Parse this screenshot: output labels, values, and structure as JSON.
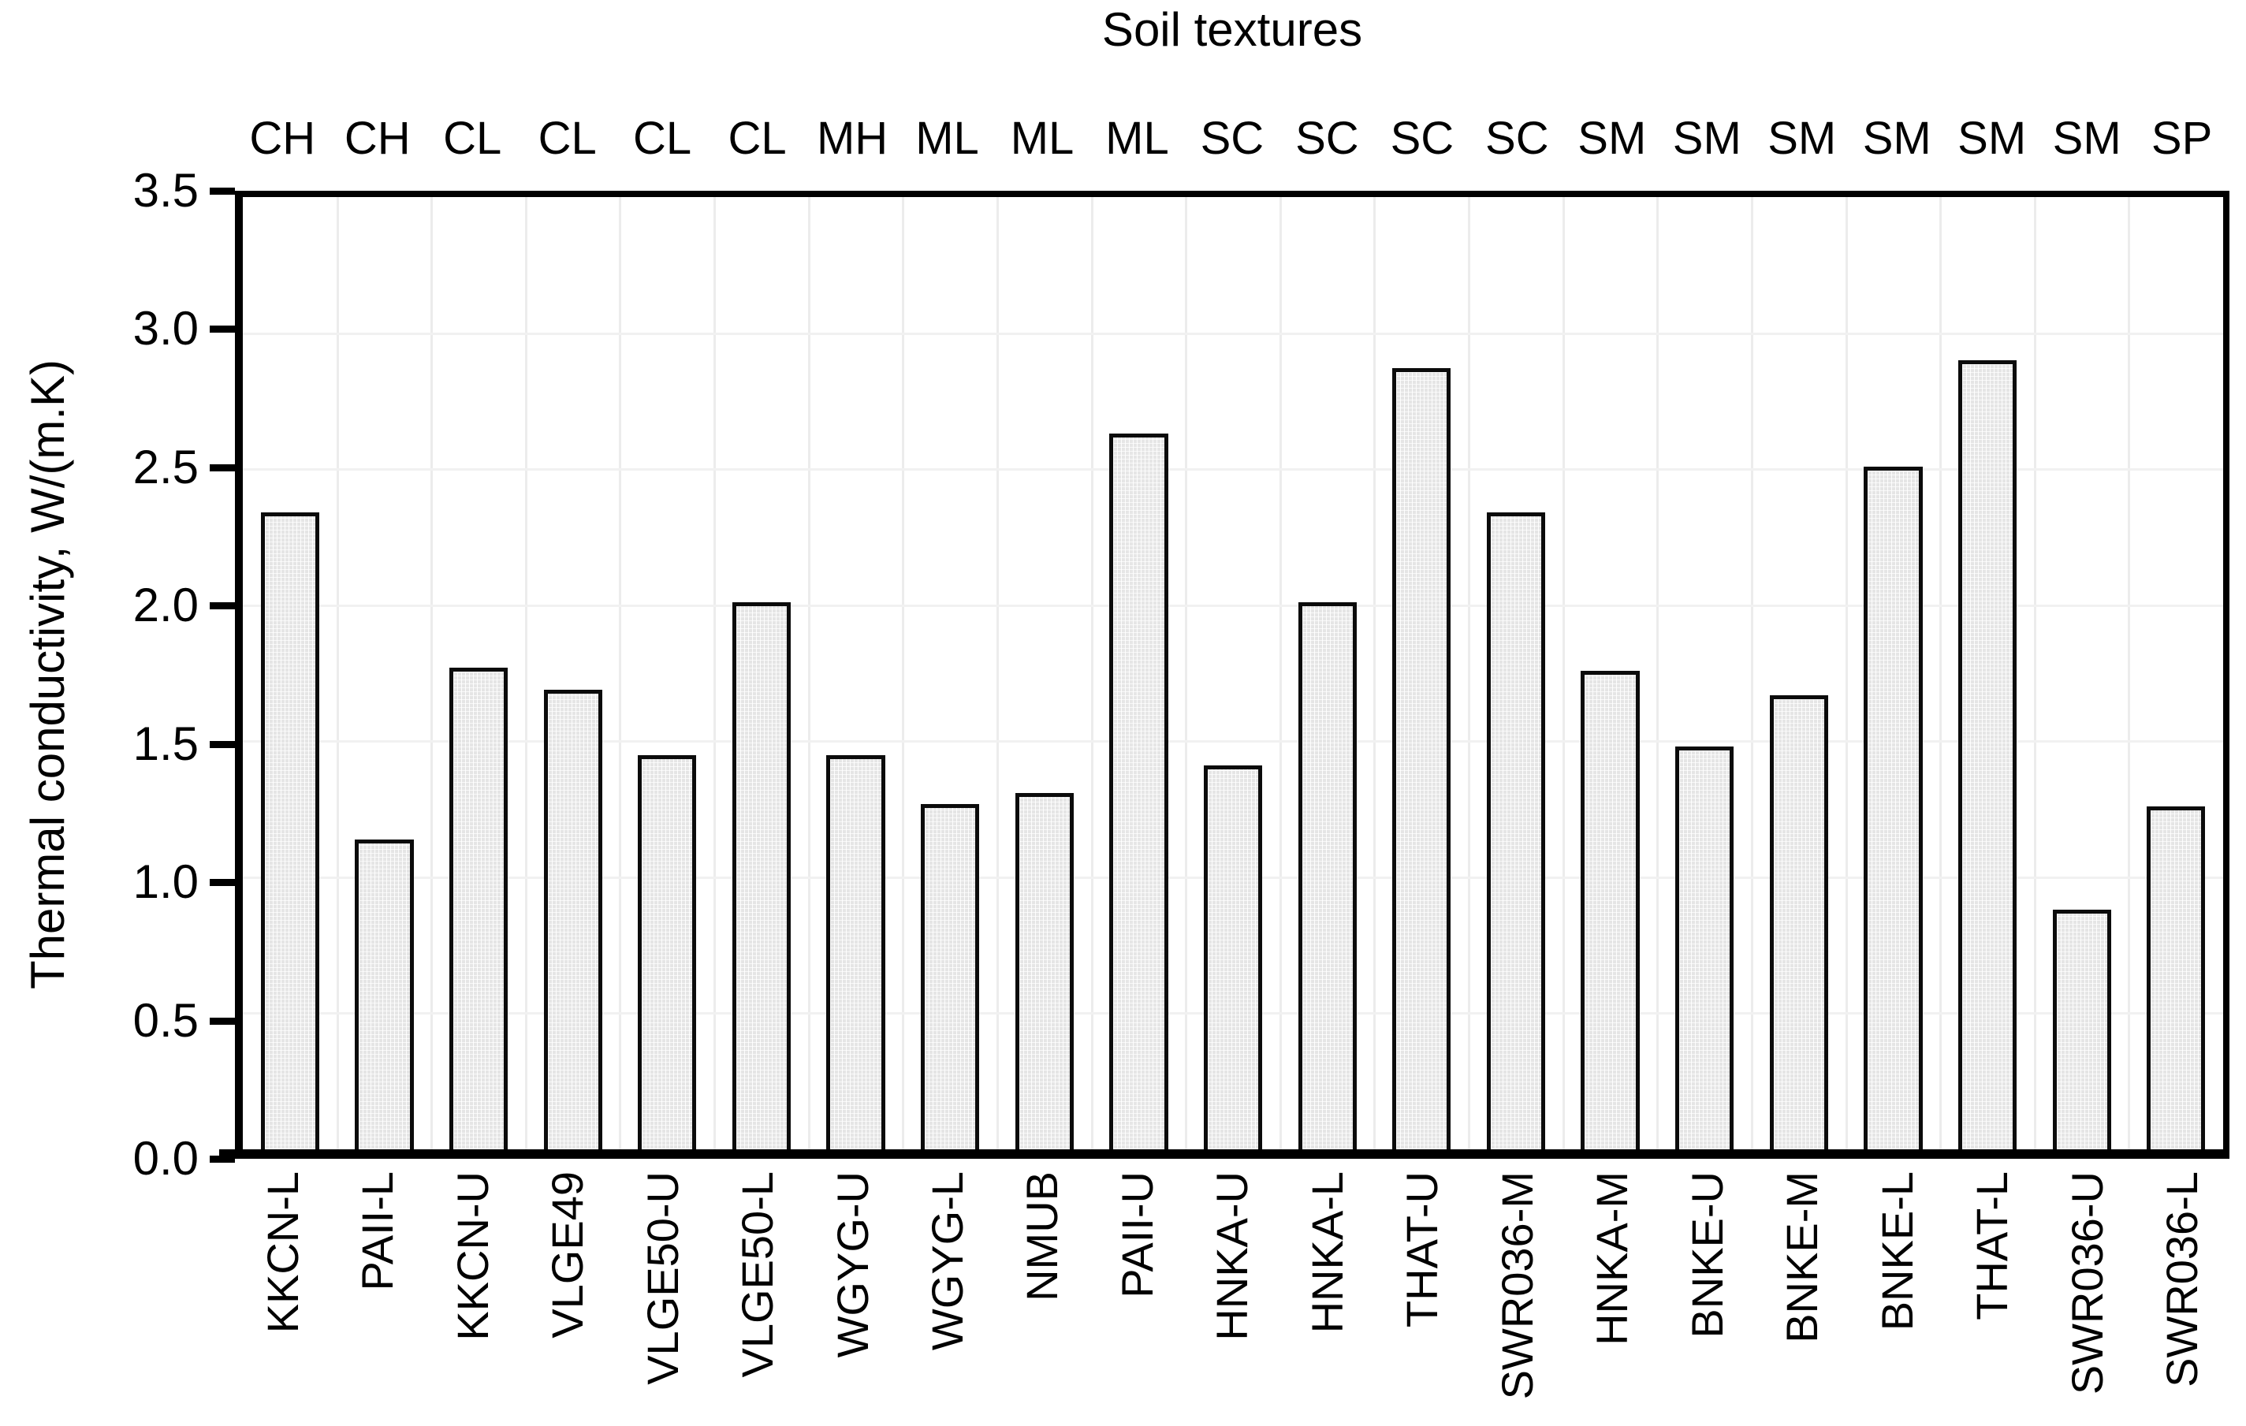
{
  "chart_title_top": "Soil textures",
  "y_axis": {
    "label": "Thermal conductivity, W/(m.K)",
    "tick_labels": [
      "0.0",
      "0.5",
      "1.0",
      "1.5",
      "2.0",
      "2.5",
      "3.0",
      "3.5"
    ],
    "min": 0.0,
    "max": 3.5
  },
  "chart_data": {
    "type": "bar",
    "title": "Soil textures",
    "ylabel": "Thermal conductivity, W/(m.K)",
    "xlabel_top": "Soil textures",
    "ylim": [
      0.0,
      3.5
    ],
    "ytick_step": 0.5,
    "grid": "on",
    "legend": "none",
    "categories": [
      "KKCN-L",
      "PAII-L",
      "KKCN-U",
      "VLGE49",
      "VLGE50-U",
      "VLGE50-L",
      "WGYG-U",
      "WGYG-L",
      "NMUB",
      "PAII-U",
      "HNKA-U",
      "HNKA-L",
      "THAT-U",
      "SWR036-M",
      "HNKA-M",
      "BNKE-U",
      "BNKE-M",
      "BNKE-L",
      "THAT-L",
      "SWR036-U",
      "SWR036-L"
    ],
    "texture_labels": [
      "CH",
      "CH",
      "CL",
      "CL",
      "CL",
      "CL",
      "MH",
      "ML",
      "ML",
      "ML",
      "SC",
      "SC",
      "SC",
      "SC",
      "SM",
      "SM",
      "SM",
      "SM",
      "SM",
      "SM",
      "SP"
    ],
    "values": [
      2.34,
      1.14,
      1.77,
      1.69,
      1.45,
      2.01,
      1.45,
      1.27,
      1.31,
      2.63,
      1.41,
      2.01,
      2.87,
      2.34,
      1.76,
      1.48,
      1.67,
      2.51,
      2.9,
      0.88,
      1.26
    ]
  },
  "colors": {
    "background": "#ffffff",
    "bar_fill": "#efefef",
    "bar_border": "#0b0b0b",
    "axis": "#000000",
    "gridline_vertical": "#ececec",
    "gridline_horizontal": "#f1f1f1",
    "text": "#000000"
  }
}
